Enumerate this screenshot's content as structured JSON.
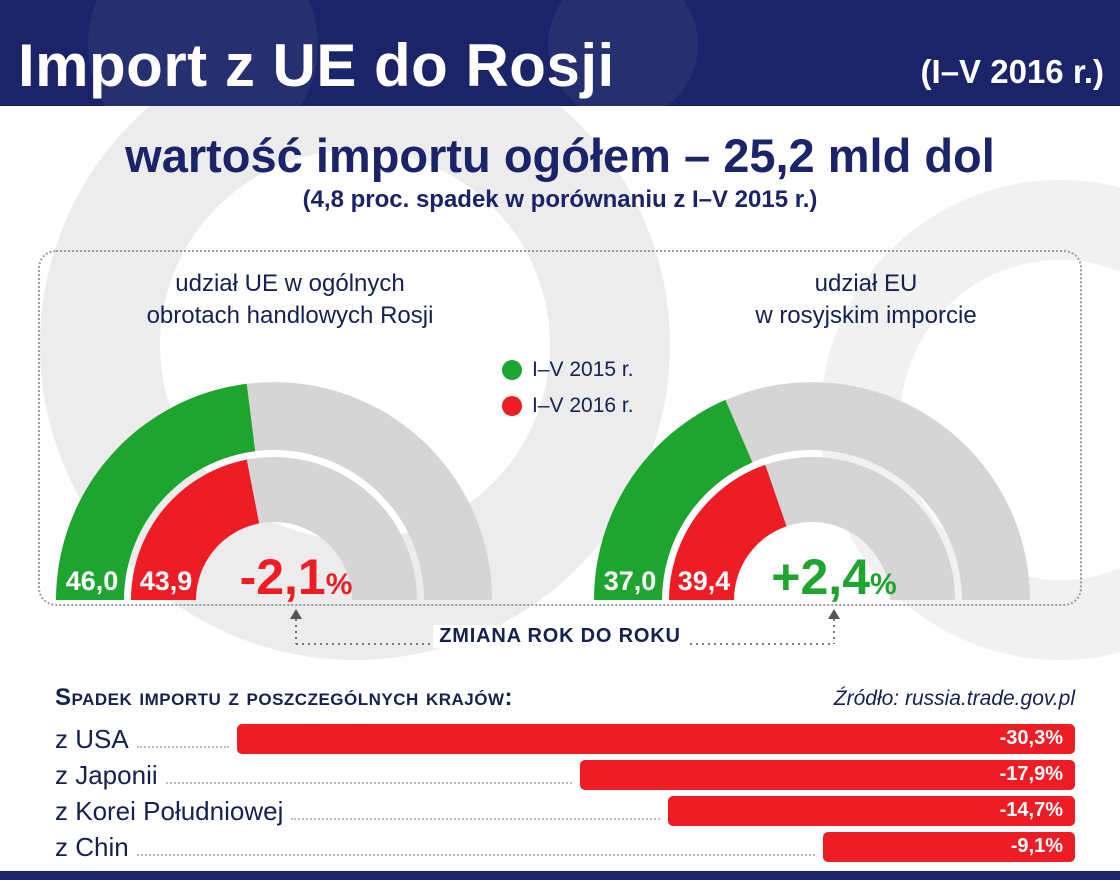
{
  "header": {
    "title": "Import z UE do Rosji",
    "period": "(I–V 2016 r.)"
  },
  "headline": {
    "main": "wartość importu ogółem – 25,2 mld dol",
    "sub": "(4,8 proc. spadek w porównaniu z I–V 2015 r.)"
  },
  "panel": {
    "legend": [
      {
        "label": "I–V 2015 r.",
        "color": "#1ea52f"
      },
      {
        "label": "I–V 2016 r.",
        "color": "#ee1c25"
      }
    ],
    "change_note": "ZMIANA ROK DO ROKU"
  },
  "bottom": {
    "section_title": "Spadek importu z poszczególnych krajów:",
    "source": "Źródło: russia.trade.gov.pl"
  },
  "palette": {
    "navy": "#1b2468",
    "red": "#ee1c25",
    "green": "#1ea52f",
    "track_gray": "#d5d5d5"
  },
  "chart_data": [
    {
      "type": "half-donut-gauge",
      "title": "udział UE w ogólnych obrotach handlowych Rosji",
      "title_line1": "udział UE w ogólnych",
      "title_line2": "obrotach handlowych Rosji",
      "unit": "%",
      "max": 100,
      "rings": [
        {
          "name": "I–V 2015 r.",
          "value": 46.0,
          "display": "46,0",
          "color": "#1ea52f"
        },
        {
          "name": "I–V 2016 r.",
          "value": 43.9,
          "display": "43,9",
          "color": "#ee1c25"
        }
      ],
      "change": {
        "display": "-2,1",
        "suffix": "%",
        "direction": "down"
      }
    },
    {
      "type": "half-donut-gauge",
      "title": "udział EU w rosyjskim imporcie",
      "title_line1": "udział EU",
      "title_line2": "w rosyjskim imporcie",
      "unit": "%",
      "max": 100,
      "rings": [
        {
          "name": "I–V 2015 r.",
          "value": 37.0,
          "display": "37,0",
          "color": "#1ea52f"
        },
        {
          "name": "I–V 2016 r.",
          "value": 39.4,
          "display": "39,4",
          "color": "#ee1c25"
        }
      ],
      "change": {
        "display": "+2,4",
        "suffix": "%",
        "direction": "up"
      }
    },
    {
      "type": "bar",
      "orientation": "horizontal",
      "anchor": "right",
      "title": "Spadek importu z poszczególnych krajów:",
      "categories": [
        "z USA",
        "z Japonii",
        "z Korei Południowej",
        "z Chin"
      ],
      "values": [
        -30.3,
        -17.9,
        -14.7,
        -9.1
      ],
      "displays": [
        "-30,3%",
        "-17,9%",
        "-14,7%",
        "-9,1%"
      ],
      "bar_color": "#ee1c25",
      "xlim": [
        -30.3,
        0
      ]
    }
  ]
}
